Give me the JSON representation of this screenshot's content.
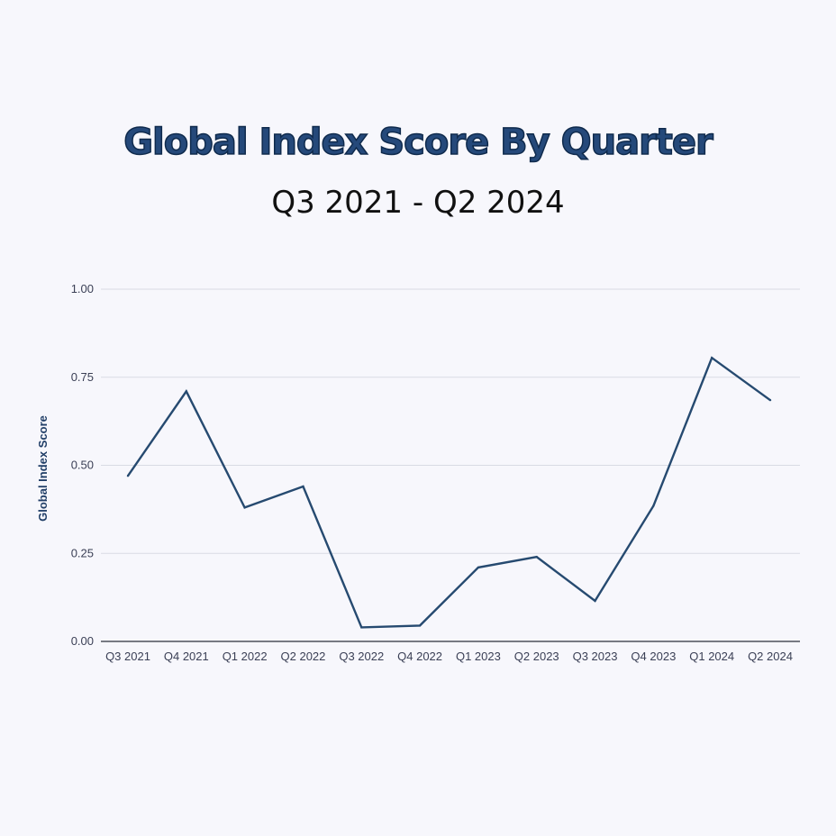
{
  "title": "Global Index Score By Quarter",
  "subtitle": "Q3 2021 - Q2 2024",
  "colors": {
    "background": "#f7f7fc",
    "line": "#264a70",
    "title": "#25497a",
    "grid": "#d9dbe3"
  },
  "chart_data": {
    "type": "line",
    "title": "Global Index Score By Quarter",
    "subtitle": "Q3 2021 - Q2 2024",
    "xlabel": "",
    "ylabel": "Global Index Score",
    "categories": [
      "Q3 2021",
      "Q4 2021",
      "Q1 2022",
      "Q2 2022",
      "Q3 2022",
      "Q4 2022",
      "Q1 2023",
      "Q2 2023",
      "Q3 2023",
      "Q4 2023",
      "Q1 2024",
      "Q2 2024"
    ],
    "values": [
      0.47,
      0.71,
      0.38,
      0.44,
      0.04,
      0.045,
      0.21,
      0.24,
      0.115,
      0.385,
      0.805,
      0.685
    ],
    "ylim": [
      0,
      1
    ],
    "yticks": [
      "0.00",
      "0.25",
      "0.50",
      "0.75",
      "1.00"
    ],
    "grid": true,
    "legend": "none"
  }
}
